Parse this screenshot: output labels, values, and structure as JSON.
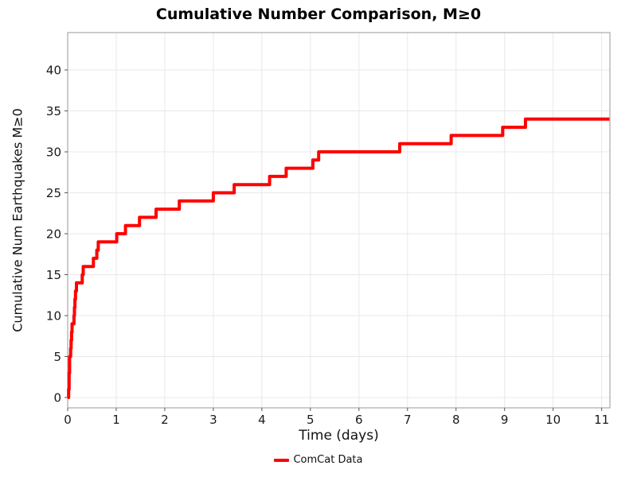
{
  "title": "Cumulative Number Comparison, M≥0",
  "chart_data": {
    "type": "line",
    "subtype": "cumulative-step",
    "title": "Cumulative Number Comparison, M≥0",
    "xlabel": "Time (days)",
    "ylabel": "Cumulative Num Earthquakes M≥0",
    "xlim": [
      0,
      11.17
    ],
    "ylim": [
      -1.26,
      44.56
    ],
    "xticks": [
      0,
      1,
      2,
      3,
      4,
      5,
      6,
      7,
      8,
      9,
      10,
      11
    ],
    "yticks": [
      0,
      5,
      10,
      15,
      20,
      25,
      30,
      35,
      40
    ],
    "grid": true,
    "legend_position": "bottom-center",
    "series": [
      {
        "name": "ComCat Data",
        "color": "#ff0000",
        "line_width": 4,
        "step_mode": "post",
        "start": [
          0,
          0
        ],
        "end_x": 11.16,
        "events": [
          [
            0.02,
            1
          ],
          [
            0.03,
            2
          ],
          [
            0.03,
            3
          ],
          [
            0.04,
            4
          ],
          [
            0.04,
            5
          ],
          [
            0.06,
            6
          ],
          [
            0.07,
            7
          ],
          [
            0.08,
            8
          ],
          [
            0.09,
            9
          ],
          [
            0.13,
            10
          ],
          [
            0.14,
            11
          ],
          [
            0.15,
            12
          ],
          [
            0.16,
            13
          ],
          [
            0.18,
            14
          ],
          [
            0.3,
            15
          ],
          [
            0.32,
            16
          ],
          [
            0.53,
            17
          ],
          [
            0.6,
            18
          ],
          [
            0.63,
            19
          ],
          [
            1.01,
            20
          ],
          [
            1.19,
            21
          ],
          [
            1.48,
            22
          ],
          [
            1.82,
            23
          ],
          [
            2.3,
            24
          ],
          [
            3.0,
            25
          ],
          [
            3.43,
            26
          ],
          [
            4.16,
            27
          ],
          [
            4.5,
            28
          ],
          [
            5.05,
            29
          ],
          [
            5.17,
            30
          ],
          [
            6.84,
            31
          ],
          [
            7.9,
            32
          ],
          [
            8.96,
            33
          ],
          [
            9.43,
            34
          ]
        ],
        "final_count": 34
      }
    ]
  },
  "legend": {
    "items": [
      {
        "label": "ComCat Data",
        "color": "#ff0000"
      }
    ]
  },
  "colors": {
    "line": "#ff0000",
    "grid": "#e8e8e8",
    "spine": "#a9a9a9",
    "text": "#1a1a1a",
    "background": "#ffffff"
  }
}
